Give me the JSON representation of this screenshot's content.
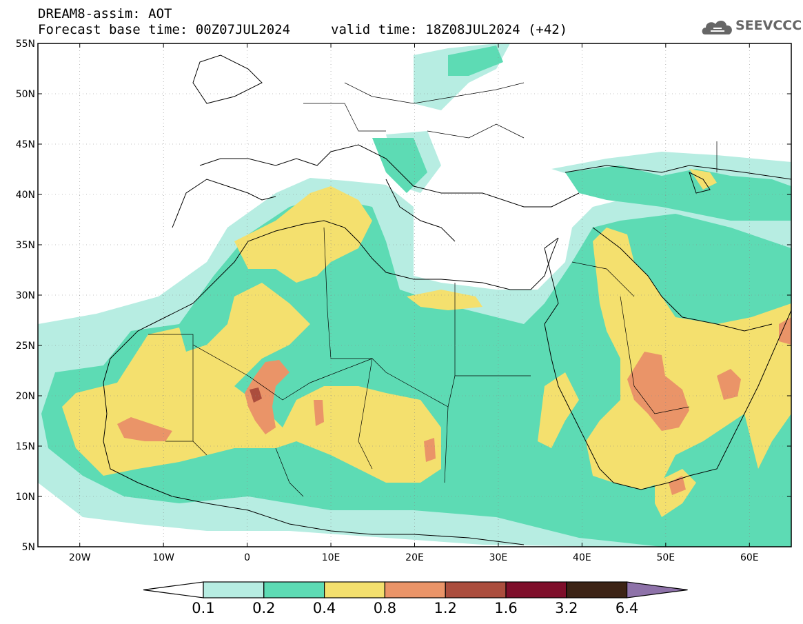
{
  "header": {
    "line1": "DREAM8-assim: AOT",
    "line2": "Forecast base time: 00Z07JUL2024",
    "line3": "valid time: 18Z08JUL2024 (+42)"
  },
  "logo": {
    "text": "SEEVCCC",
    "icon": "cloud-icon",
    "color": "#666666"
  },
  "map": {
    "lat_labels": [
      "55N",
      "50N",
      "45N",
      "40N",
      "35N",
      "30N",
      "25N",
      "20N",
      "15N",
      "10N",
      "5N"
    ],
    "lon_labels": [
      "20W",
      "10W",
      "0",
      "10E",
      "20E",
      "30E",
      "40E",
      "50E",
      "60E"
    ],
    "lon_range": [
      -25,
      65
    ],
    "lat_range": [
      5,
      55
    ]
  },
  "colorbar": {
    "colors": [
      "#ffffff",
      "#b7ede2",
      "#5ddbb4",
      "#f4e06e",
      "#ea9468",
      "#ab4d3d",
      "#7e0e2a",
      "#3c2315",
      "#8e72a9"
    ],
    "labels": [
      "0.1",
      "0.2",
      "0.4",
      "0.8",
      "1.2",
      "1.6",
      "3.2",
      "6.4"
    ]
  }
}
